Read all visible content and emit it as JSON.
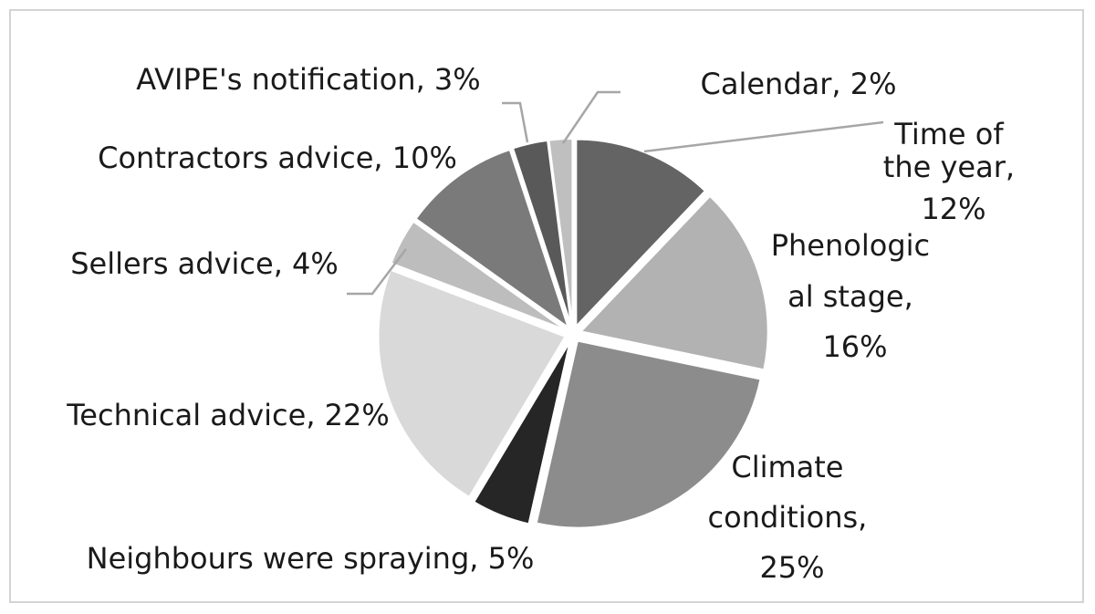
{
  "chart_data": {
    "type": "pie",
    "slices": [
      {
        "label": "Time of the year",
        "value": 12,
        "pct_label": "12%",
        "color": "#646464"
      },
      {
        "label": "Phenological stage",
        "value": 16,
        "pct_label": "16%",
        "color": "#b2b2b2"
      },
      {
        "label": "Climate conditions",
        "value": 25,
        "pct_label": "25%",
        "color": "#8c8c8c"
      },
      {
        "label": "Neighbours were spraying",
        "value": 5,
        "pct_label": "5%",
        "color": "#262626"
      },
      {
        "label": "Technical advice",
        "value": 22,
        "pct_label": "22%",
        "color": "#d9d9d9"
      },
      {
        "label": "Sellers advice",
        "value": 4,
        "pct_label": "4%",
        "color": "#bdbdbd"
      },
      {
        "label": "Contractors advice",
        "value": 10,
        "pct_label": "10%",
        "color": "#7a7a7a"
      },
      {
        "label": "AVIPE's notification",
        "value": 3,
        "pct_label": "3%",
        "color": "#595959"
      },
      {
        "label": "Calendar",
        "value": 2,
        "pct_label": "2%",
        "color": "#bfbfbf"
      }
    ],
    "data_labels": {
      "time_of_year": [
        "Time of",
        "the year,",
        "12%"
      ],
      "phenological": [
        "Phenologic",
        "al stage,",
        "16%"
      ],
      "climate": [
        "Climate",
        "conditions,",
        "25%"
      ],
      "neighbours": "Neighbours were spraying, 5%",
      "technical": "Technical advice, 22%",
      "sellers": "Sellers advice, 4%",
      "contractors": "Contractors advice, 10%",
      "avipe": "AVIPE's notification, 3%",
      "calendar": "Calendar, 2%"
    },
    "legend": "none",
    "exploded": true
  }
}
